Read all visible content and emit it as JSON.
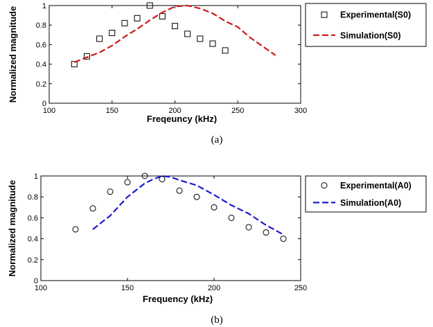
{
  "chart_data": [
    {
      "type": "scatter",
      "caption": "(a)",
      "xlabel": "Freqeuncy (kHz)",
      "ylabel": "Normalized magnitude",
      "xlim": [
        100,
        300
      ],
      "ylim": [
        0,
        1
      ],
      "xticks": [
        100,
        150,
        200,
        250,
        300
      ],
      "yticks": [
        0,
        0.2,
        0.4,
        0.6,
        0.8,
        1
      ],
      "xtick_labels": [
        "100",
        "150",
        "200",
        "250",
        "300"
      ],
      "ytick_labels": [
        "0",
        "0.2",
        "0.4",
        "0.6",
        "0.8",
        "1"
      ],
      "grid": false,
      "legend_position": "outside-right",
      "series": [
        {
          "name": "Experimental(S0)",
          "kind": "marker-square",
          "color": "#000000",
          "x": [
            120,
            130,
            140,
            150,
            160,
            170,
            180,
            190,
            200,
            210,
            220,
            230,
            240
          ],
          "y": [
            0.4,
            0.48,
            0.66,
            0.72,
            0.82,
            0.87,
            1.0,
            0.89,
            0.79,
            0.71,
            0.66,
            0.61,
            0.54
          ]
        },
        {
          "name": "Simulation(S0)",
          "kind": "dashed-line",
          "color": "#cc1a1a",
          "x": [
            120,
            130,
            140,
            150,
            160,
            170,
            180,
            190,
            200,
            210,
            220,
            230,
            240,
            250,
            260,
            270,
            280
          ],
          "y": [
            0.42,
            0.47,
            0.52,
            0.59,
            0.68,
            0.76,
            0.85,
            0.93,
            0.99,
            1.0,
            0.97,
            0.92,
            0.84,
            0.78,
            0.67,
            0.58,
            0.49
          ]
        }
      ]
    },
    {
      "type": "scatter",
      "caption": "(b)",
      "xlabel": "Frequency (kHz)",
      "ylabel": "Normalized magnitude",
      "xlim": [
        100,
        250
      ],
      "ylim": [
        0,
        1
      ],
      "xticks": [
        100,
        150,
        200,
        250
      ],
      "yticks": [
        0,
        0.2,
        0.4,
        0.6,
        0.8,
        1
      ],
      "xtick_labels": [
        "100",
        "150",
        "200",
        "250"
      ],
      "ytick_labels": [
        "0",
        "0.2",
        "0.4",
        "0.6",
        "0.8",
        "1"
      ],
      "grid": false,
      "legend_position": "outside-right",
      "series": [
        {
          "name": "Experimental(A0)",
          "kind": "marker-circle",
          "color": "#000000",
          "x": [
            120,
            130,
            140,
            150,
            160,
            170,
            180,
            190,
            200,
            210,
            220,
            230,
            240
          ],
          "y": [
            0.49,
            0.69,
            0.85,
            0.94,
            1.0,
            0.97,
            0.86,
            0.8,
            0.7,
            0.6,
            0.51,
            0.46,
            0.4
          ]
        },
        {
          "name": "Simulation(A0)",
          "kind": "dashed-line",
          "color": "#1a1acc",
          "x": [
            130,
            140,
            150,
            160,
            165,
            170,
            175,
            180,
            190,
            200,
            210,
            220,
            230,
            240
          ],
          "y": [
            0.49,
            0.62,
            0.8,
            0.93,
            0.97,
            1.0,
            0.99,
            0.96,
            0.91,
            0.82,
            0.72,
            0.64,
            0.53,
            0.44
          ]
        }
      ]
    }
  ]
}
